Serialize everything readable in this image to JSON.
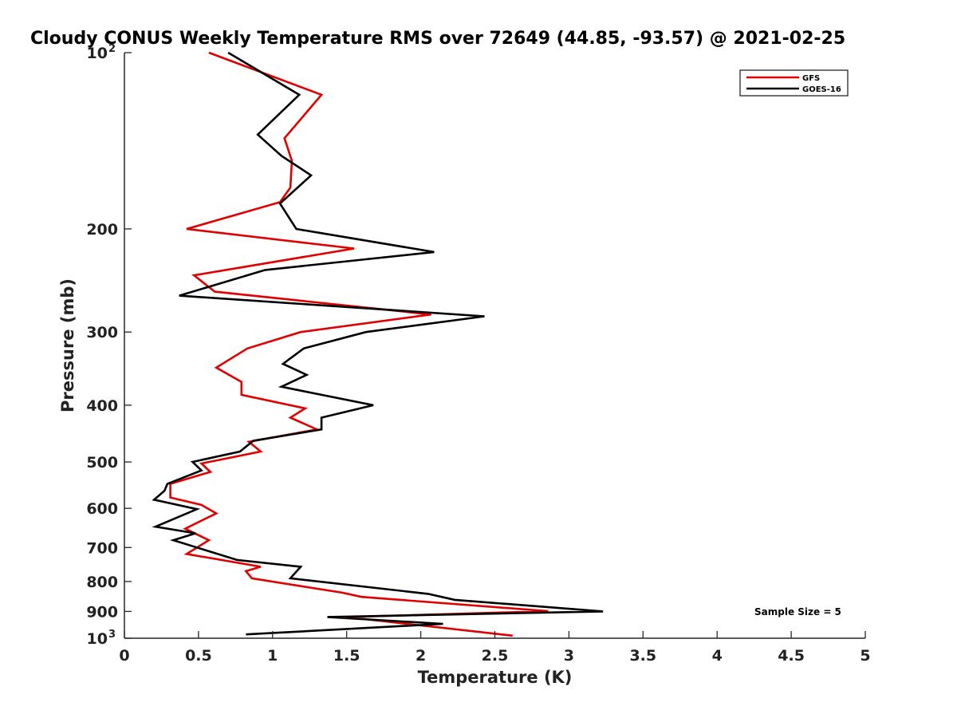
{
  "chart_data": {
    "type": "line",
    "title": "Cloudy CONUS Weekly Temperature RMS over 72649 (44.85, -93.57) @ 2021-02-25",
    "xlabel": "Temperature (K)",
    "ylabel": "Pressure (mb)",
    "xlim": [
      0,
      5
    ],
    "ylim": [
      100,
      1000
    ],
    "y_scale": "log",
    "y_reversed": true,
    "x_ticks": [
      "0",
      "0.5",
      "1",
      "1.5",
      "2",
      "2.5",
      "3",
      "3.5",
      "4",
      "4.5",
      "5"
    ],
    "y_ticks": [
      {
        "value": 100,
        "base": "10",
        "exp": "2"
      },
      {
        "value": 200,
        "label": "200"
      },
      {
        "value": 300,
        "label": "300"
      },
      {
        "value": 400,
        "label": "400"
      },
      {
        "value": 500,
        "label": "500"
      },
      {
        "value": 600,
        "label": "600"
      },
      {
        "value": 700,
        "label": "700"
      },
      {
        "value": 800,
        "label": "800"
      },
      {
        "value": 900,
        "label": "900"
      },
      {
        "value": 1000,
        "base": "10",
        "exp": "3"
      }
    ],
    "grid": false,
    "legend_position": "top-right",
    "annotation": "Sample Size = 5",
    "series": [
      {
        "name": "GFS",
        "color": "#e00000",
        "points": [
          [
            0.57,
            100
          ],
          [
            1.33,
            118
          ],
          [
            1.08,
            140
          ],
          [
            1.13,
            153
          ],
          [
            1.12,
            170
          ],
          [
            1.05,
            180
          ],
          [
            0.42,
            200
          ],
          [
            1.55,
            216
          ],
          [
            0.47,
            240
          ],
          [
            0.61,
            256
          ],
          [
            2.07,
            280
          ],
          [
            1.19,
            300
          ],
          [
            0.83,
            320
          ],
          [
            0.62,
            345
          ],
          [
            0.79,
            365
          ],
          [
            0.79,
            384
          ],
          [
            1.22,
            405
          ],
          [
            1.12,
            420
          ],
          [
            1.3,
            440
          ],
          [
            0.84,
            462
          ],
          [
            0.92,
            480
          ],
          [
            0.52,
            503
          ],
          [
            0.58,
            520
          ],
          [
            0.31,
            545
          ],
          [
            0.31,
            575
          ],
          [
            0.52,
            592
          ],
          [
            0.62,
            612
          ],
          [
            0.41,
            650
          ],
          [
            0.57,
            680
          ],
          [
            0.42,
            718
          ],
          [
            0.92,
            755
          ],
          [
            0.82,
            768
          ],
          [
            0.86,
            790
          ],
          [
            1.47,
            836
          ],
          [
            1.6,
            850
          ],
          [
            2.86,
            899
          ],
          [
            1.5,
            920
          ],
          [
            2.62,
            990
          ]
        ]
      },
      {
        "name": "GOES-16",
        "color": "#000000",
        "points": [
          [
            0.7,
            100
          ],
          [
            1.18,
            118
          ],
          [
            0.9,
            138
          ],
          [
            1.06,
            150
          ],
          [
            1.26,
            162
          ],
          [
            1.05,
            181
          ],
          [
            1.16,
            200
          ],
          [
            2.09,
            219
          ],
          [
            0.95,
            235
          ],
          [
            0.37,
            260
          ],
          [
            2.43,
            282
          ],
          [
            1.63,
            300
          ],
          [
            1.21,
            320
          ],
          [
            1.07,
            340
          ],
          [
            1.23,
            355
          ],
          [
            1.06,
            372
          ],
          [
            1.68,
            400
          ],
          [
            1.33,
            420
          ],
          [
            1.33,
            440
          ],
          [
            0.87,
            460
          ],
          [
            0.78,
            480
          ],
          [
            0.46,
            500
          ],
          [
            0.52,
            517
          ],
          [
            0.29,
            545
          ],
          [
            0.27,
            560
          ],
          [
            0.2,
            580
          ],
          [
            0.49,
            602
          ],
          [
            0.21,
            645
          ],
          [
            0.48,
            662
          ],
          [
            0.33,
            680
          ],
          [
            0.76,
            735
          ],
          [
            1.19,
            755
          ],
          [
            1.12,
            790
          ],
          [
            2.05,
            840
          ],
          [
            2.23,
            860
          ],
          [
            3.23,
            900
          ],
          [
            1.37,
            920
          ],
          [
            2.15,
            945
          ],
          [
            0.82,
            985
          ]
        ]
      }
    ]
  }
}
